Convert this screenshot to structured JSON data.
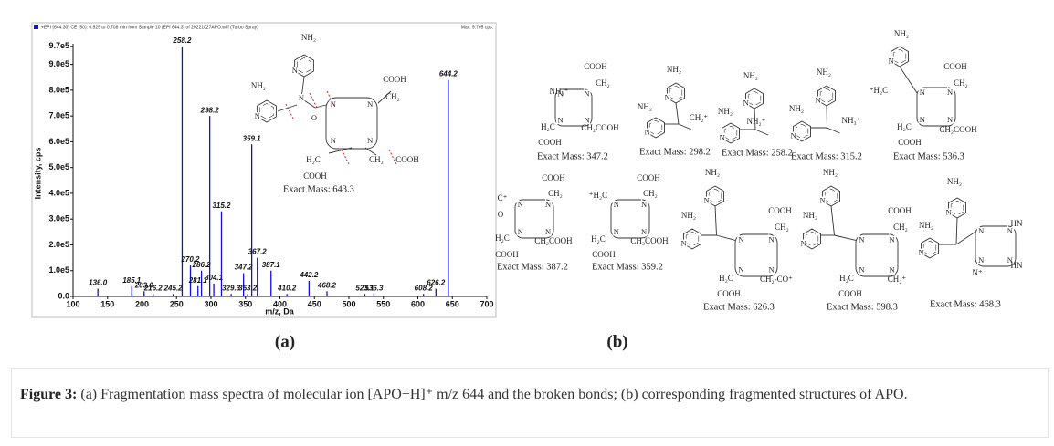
{
  "chart_data": {
    "type": "bar",
    "header": "+EPI (644.30) CE (50): 0.525 to 0.708 min from Sample 10 (EPI 644.3) of 20221027APO.wiff (Turbo Spray)",
    "max_label": "Max. 9.7e5 cps.",
    "x_label": "m/z, Da",
    "y_label": "Intensity, cps",
    "color": "#1010d8",
    "x": [
      136.0,
      185.1,
      203.0,
      216.2,
      245.2,
      258.2,
      270.2,
      281.1,
      286.2,
      298.2,
      304.1,
      315.2,
      329.3,
      347.2,
      353.2,
      359.1,
      367.2,
      387.1,
      410.2,
      442.2,
      468.2,
      523.1,
      536.3,
      608.2,
      626.2,
      644.2
    ],
    "x_labels": [
      "136.0",
      "185.1",
      "203.0",
      "216.2",
      "245.2",
      "258.2",
      "270.2",
      "281.1",
      "286.2",
      "298.2",
      "304.1",
      "315.2",
      "329.3",
      "347.2",
      "353.2",
      "359.1",
      "367.2",
      "387.1",
      "410.2",
      "442.2",
      "468.2",
      "523.1",
      "536.3",
      "608.2",
      "626.2",
      "644.2"
    ],
    "values": [
      30000,
      40000,
      20000,
      10000,
      10000,
      970000,
      120000,
      40000,
      100000,
      700000,
      50000,
      330000,
      10000,
      90000,
      10000,
      590000,
      150000,
      100000,
      10000,
      60000,
      20000,
      10000,
      10000,
      10000,
      30000,
      840000
    ],
    "xlim": [
      100,
      700
    ],
    "xticks": [
      100,
      150,
      200,
      250,
      300,
      350,
      400,
      450,
      500,
      550,
      600,
      650,
      700
    ],
    "ylim": [
      0,
      980000
    ],
    "yticks": [
      {
        "value": 0,
        "label": "0.0"
      },
      {
        "value": 100000,
        "label": "1.0e5"
      },
      {
        "value": 200000,
        "label": "2.0e5"
      },
      {
        "value": 300000,
        "label": "3.0e5"
      },
      {
        "value": 400000,
        "label": "4.0e5"
      },
      {
        "value": 500000,
        "label": "5.0e5"
      },
      {
        "value": 600000,
        "label": "6.0e5"
      },
      {
        "value": 700000,
        "label": "7.0e5"
      },
      {
        "value": 800000,
        "label": "8.0e5"
      },
      {
        "value": 900000,
        "label": "9.0e5"
      },
      {
        "value": 970000,
        "label": "9.7e5"
      }
    ],
    "inset": {
      "labels": [
        "NH₂",
        "NH₂",
        "COOH",
        "CH₂",
        "H₂C",
        "COOH",
        "CH₂",
        "COOH"
      ],
      "exact_mass": "Exact Mass: 643.3"
    }
  },
  "atom_labels": {
    "nitrogen": "N",
    "oxygen": "O"
  },
  "panel_labels": [
    "(a)",
    "(b)"
  ],
  "structures": [
    {
      "labels": [
        "COOH",
        "CH₂",
        "NH₂⁺",
        "H₂C",
        "CH₂COOH",
        "COOH"
      ],
      "exact_mass": "Exact Mass: 347.2"
    },
    {
      "labels": [
        "NH₂",
        "NH₂",
        "CH₂⁺"
      ],
      "exact_mass": "Exact Mass: 298.2"
    },
    {
      "labels": [
        "NH₂",
        "NH₂",
        "NH₂⁺"
      ],
      "exact_mass": "Exact Mass: 258.2"
    },
    {
      "labels": [
        "NH₂",
        "NH₂",
        "NH₃⁺"
      ],
      "exact_mass": "Exact Mass: 315.2"
    },
    {
      "labels": [
        "NH₂",
        "⁺H₂C",
        "COOH",
        "CH₂",
        "H₂C",
        "CH₂COOH",
        "COOH"
      ],
      "exact_mass": "Exact Mass: 536.3"
    },
    {
      "labels": [
        "C⁺",
        "O",
        "COOH",
        "CH₂",
        "H₂C",
        "CH₂COOH",
        "COOH"
      ],
      "exact_mass": "Exact Mass: 387.2"
    },
    {
      "labels": [
        "⁺H₂C",
        "COOH",
        "CH₂",
        "H₂C",
        "CH₂COOH",
        "COOH"
      ],
      "exact_mass": "Exact Mass: 359.2"
    },
    {
      "labels": [
        "NH₂",
        "NH₂",
        "COOH",
        "CH₂",
        "H₂C",
        "CH₂-CO⁺",
        "COOH"
      ],
      "exact_mass": "Exact Mass: 626.3"
    },
    {
      "labels": [
        "NH₂",
        "NH₂",
        "COOH",
        "CH₂",
        "H₂C",
        "CH₂⁺",
        "COOH"
      ],
      "exact_mass": "Exact Mass: 598.3"
    },
    {
      "labels": [
        "NH₂",
        "NH₂",
        "HN",
        "HN",
        "N⁺"
      ],
      "exact_mass": "Exact Mass: 468.3"
    }
  ],
  "caption": {
    "label": "Figure 3:",
    "text": "(a) Fragmentation mass spectra of molecular ion [APO+H]⁺ m/z 644 and the broken bonds; (b) corresponding fragmented structures of APO."
  }
}
